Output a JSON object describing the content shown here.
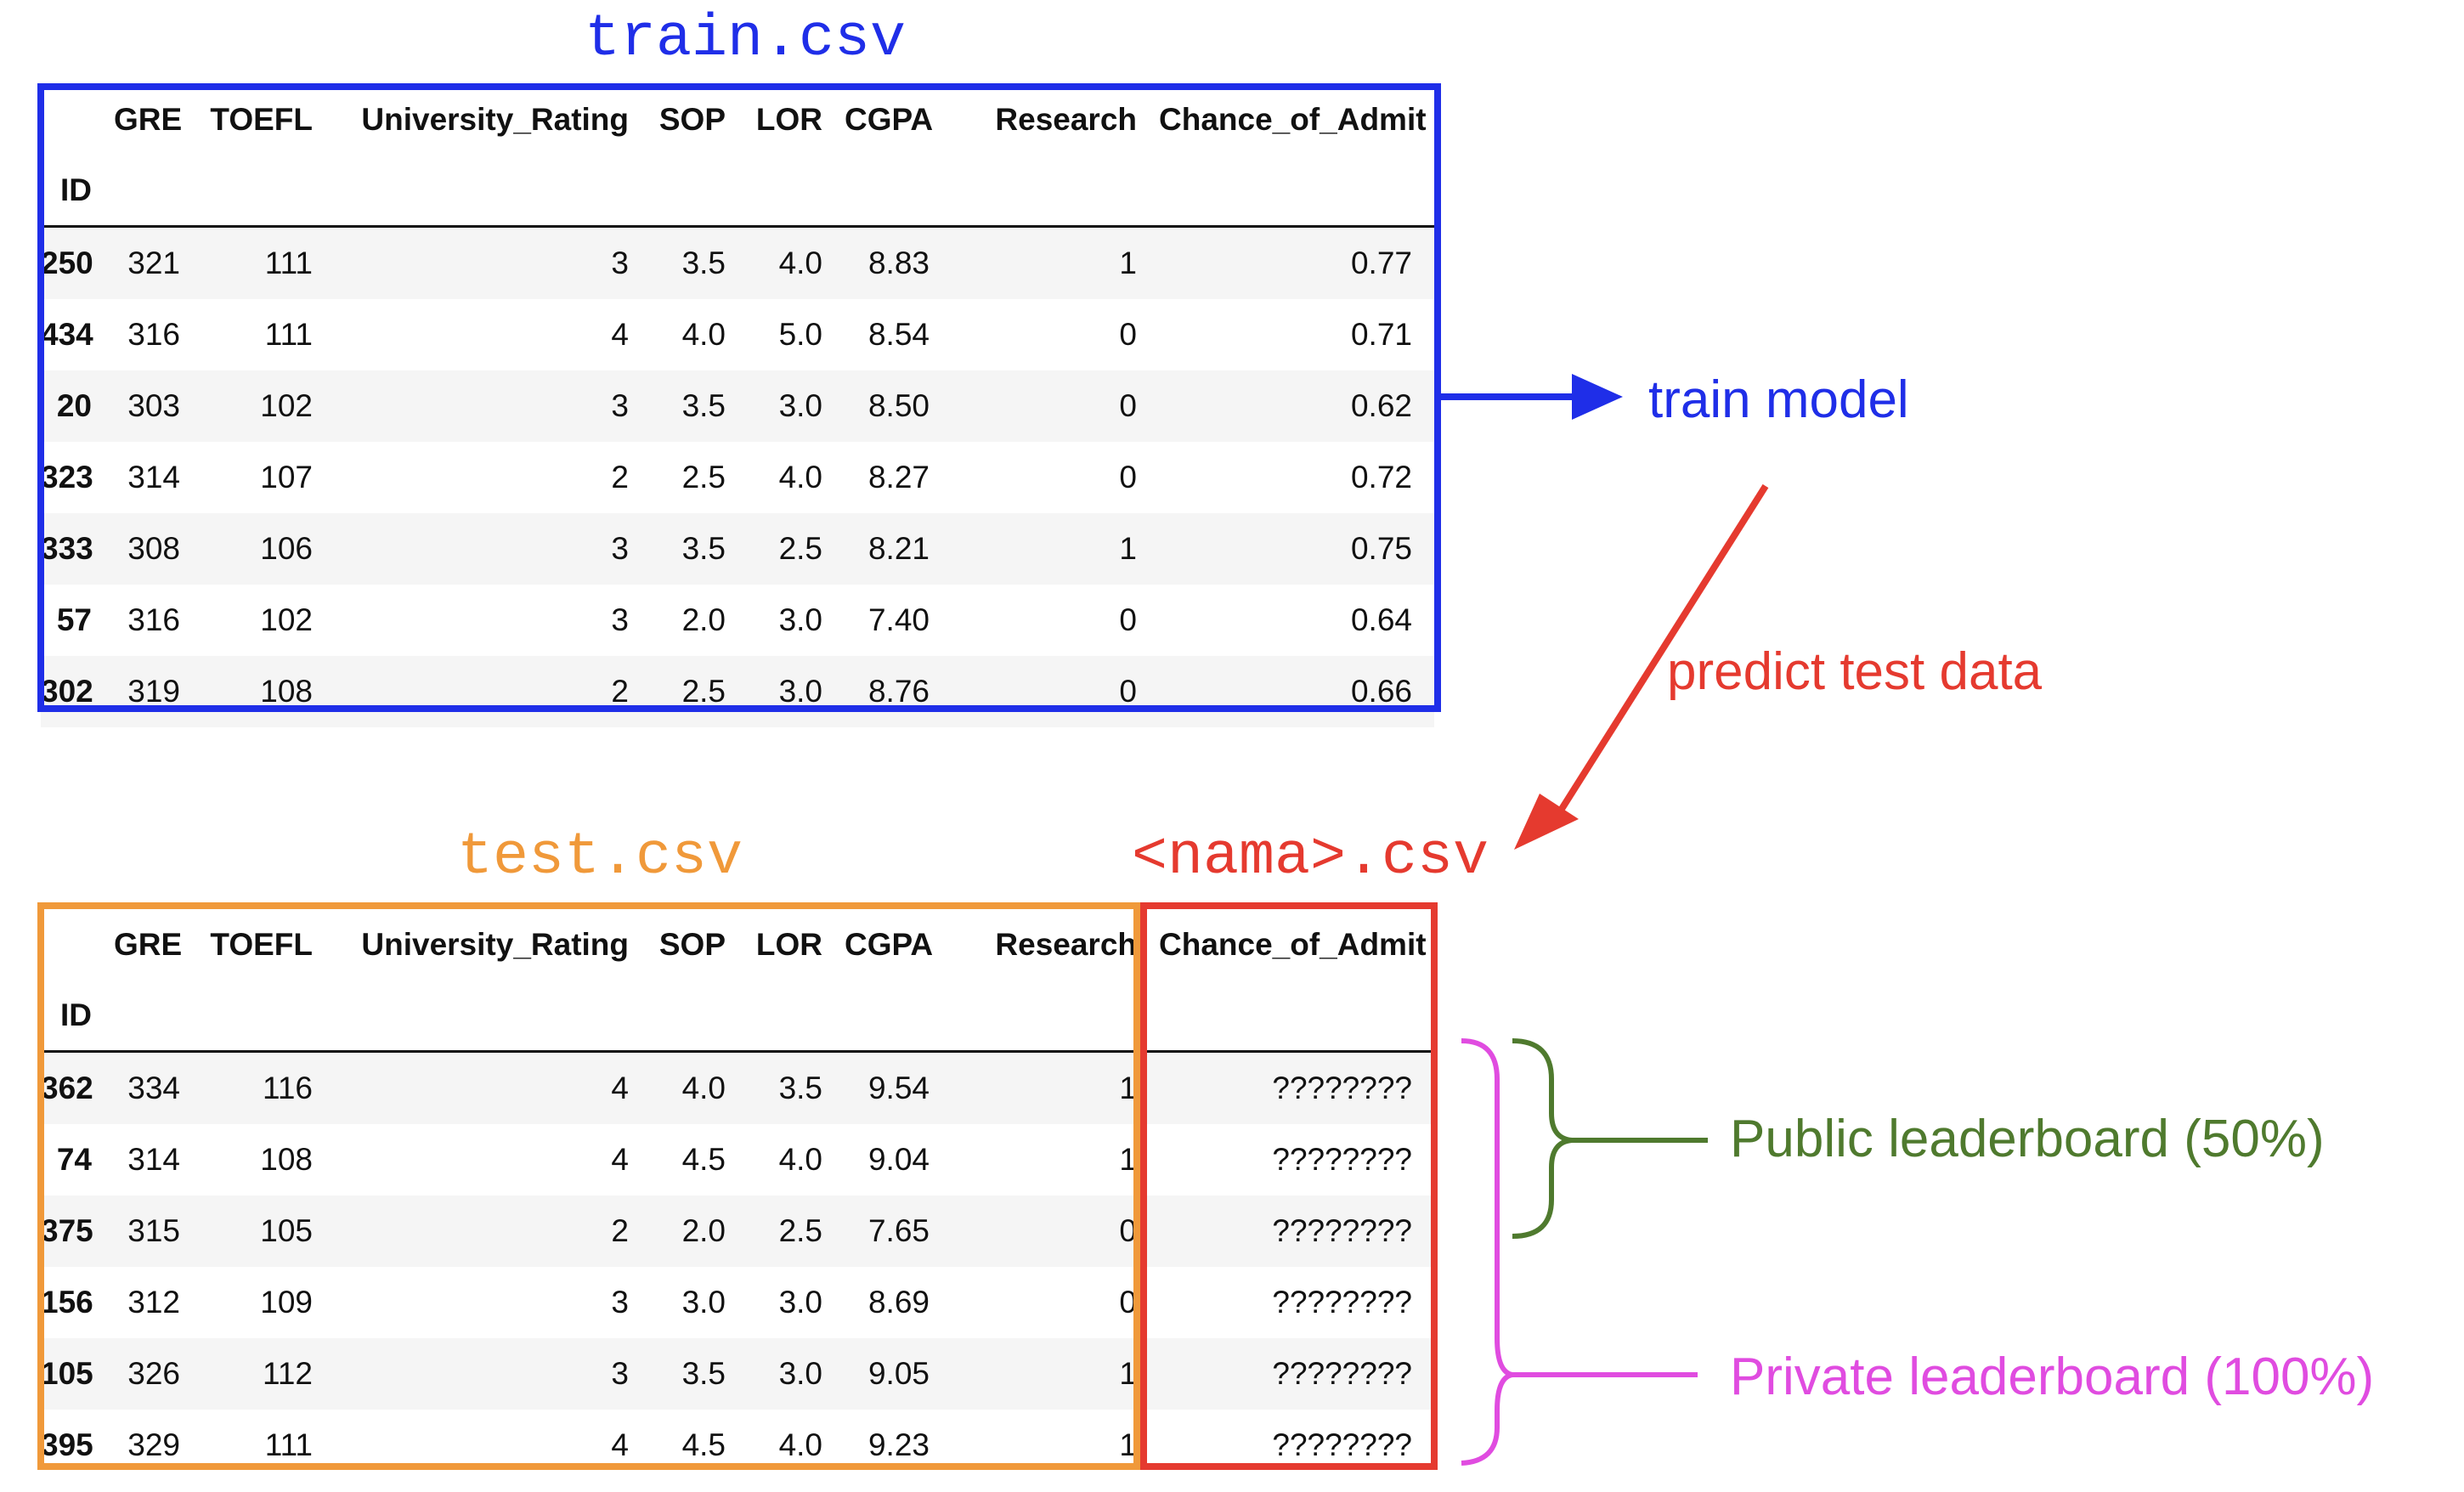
{
  "colors": {
    "train": "#1f2ee8",
    "test": "#f0993a",
    "predict": "#e53a2f",
    "public": "#4f7a2e",
    "private": "#e04ce0"
  },
  "train": {
    "file": "train.csv",
    "index_name": "ID",
    "columns": [
      "GRE",
      "TOEFL",
      "University_Rating",
      "SOP",
      "LOR",
      "CGPA",
      "Research",
      "Chance_of_Admit"
    ],
    "rows": [
      {
        "id": "250",
        "cells": [
          "321",
          "111",
          "3",
          "3.5",
          "4.0",
          "8.83",
          "1",
          "0.77"
        ]
      },
      {
        "id": "434",
        "cells": [
          "316",
          "111",
          "4",
          "4.0",
          "5.0",
          "8.54",
          "0",
          "0.71"
        ]
      },
      {
        "id": "20",
        "cells": [
          "303",
          "102",
          "3",
          "3.5",
          "3.0",
          "8.50",
          "0",
          "0.62"
        ]
      },
      {
        "id": "323",
        "cells": [
          "314",
          "107",
          "2",
          "2.5",
          "4.0",
          "8.27",
          "0",
          "0.72"
        ]
      },
      {
        "id": "333",
        "cells": [
          "308",
          "106",
          "3",
          "3.5",
          "2.5",
          "8.21",
          "1",
          "0.75"
        ]
      },
      {
        "id": "57",
        "cells": [
          "316",
          "102",
          "3",
          "2.0",
          "3.0",
          "7.40",
          "0",
          "0.64"
        ]
      },
      {
        "id": "302",
        "cells": [
          "319",
          "108",
          "2",
          "2.5",
          "3.0",
          "8.76",
          "0",
          "0.66"
        ]
      }
    ]
  },
  "test": {
    "file": "test.csv",
    "prediction_file": "<nama>.csv",
    "index_name": "ID",
    "columns": [
      "GRE",
      "TOEFL",
      "University_Rating",
      "SOP",
      "LOR",
      "CGPA",
      "Research",
      "Chance_of_Admit"
    ],
    "rows": [
      {
        "id": "362",
        "cells": [
          "334",
          "116",
          "4",
          "4.0",
          "3.5",
          "9.54",
          "1",
          "????????"
        ]
      },
      {
        "id": "74",
        "cells": [
          "314",
          "108",
          "4",
          "4.5",
          "4.0",
          "9.04",
          "1",
          "????????"
        ]
      },
      {
        "id": "375",
        "cells": [
          "315",
          "105",
          "2",
          "2.0",
          "2.5",
          "7.65",
          "0",
          "????????"
        ]
      },
      {
        "id": "156",
        "cells": [
          "312",
          "109",
          "3",
          "3.0",
          "3.0",
          "8.69",
          "0",
          "????????"
        ]
      },
      {
        "id": "105",
        "cells": [
          "326",
          "112",
          "3",
          "3.5",
          "3.0",
          "9.05",
          "1",
          "????????"
        ]
      },
      {
        "id": "395",
        "cells": [
          "329",
          "111",
          "4",
          "4.5",
          "4.0",
          "9.23",
          "1",
          "????????"
        ]
      }
    ]
  },
  "annotations": {
    "train_model": "train model",
    "predict_test_data": "predict test data",
    "public_leaderboard": "Public leaderboard (50%)",
    "private_leaderboard": "Private leaderboard (100%)"
  }
}
